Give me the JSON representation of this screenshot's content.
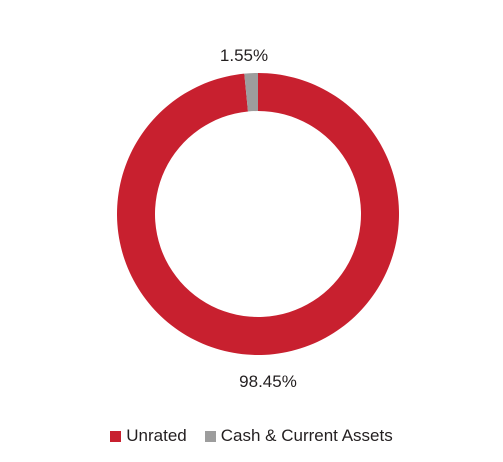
{
  "chart_data": {
    "type": "pie",
    "variant": "donut",
    "slices": [
      {
        "label": "Unrated",
        "value": 98.45,
        "display": "98.45%",
        "color": "#c8202f"
      },
      {
        "label": "Cash & Current Assets",
        "value": 1.55,
        "display": "1.55%",
        "color": "#9d9d9d"
      }
    ],
    "legend_placement": "bottom",
    "title": ""
  }
}
